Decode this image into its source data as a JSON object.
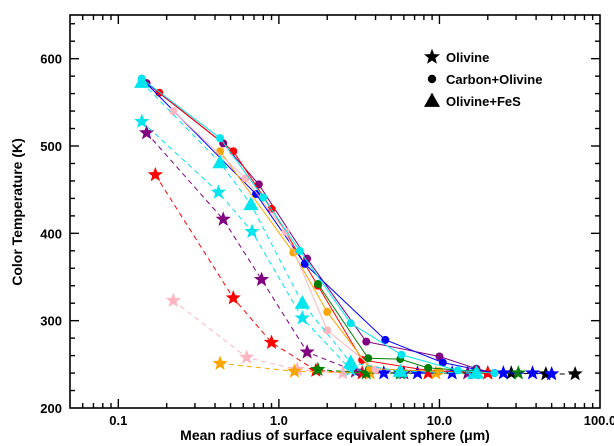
{
  "chart_data": {
    "type": "scatter",
    "xlabel": "Mean radius of surface equivalent sphere (",
    "xlabel_unit": "μm",
    "xlabel_close": ")",
    "ylabel": "Color Temperature (K)",
    "x_scale": "log",
    "xlim": [
      0.05,
      100
    ],
    "ylim": [
      200,
      650
    ],
    "x_ticks": [
      0.1,
      1.0,
      10.0,
      100.0
    ],
    "x_tick_labels": [
      "0.1",
      "1.0",
      "10.0",
      "100.0"
    ],
    "y_ticks": [
      200,
      300,
      400,
      500,
      600
    ],
    "y_tick_labels": [
      "200",
      "300",
      "400",
      "500",
      "600"
    ],
    "legend_position": "top-right",
    "legend": [
      {
        "marker": "star",
        "label": "Olivine"
      },
      {
        "marker": "circle",
        "label": "Carbon+Olivine"
      },
      {
        "marker": "triangle",
        "label": "Olivine+FeS"
      }
    ],
    "series": [
      {
        "color": "#000000",
        "marker": "star",
        "line": "dashed",
        "points": [
          [
            20,
            240
          ],
          [
            28,
            240
          ],
          [
            46,
            239
          ],
          [
            70,
            239
          ]
        ]
      },
      {
        "color": "#ff0000",
        "marker": "star",
        "line": "dashed",
        "points": [
          [
            0.17,
            467
          ],
          [
            0.52,
            326
          ],
          [
            0.9,
            275
          ],
          [
            1.7,
            243
          ],
          [
            3.3,
            240
          ],
          [
            8.5,
            240
          ],
          [
            20,
            240
          ]
        ]
      },
      {
        "color": "#800080",
        "marker": "star",
        "line": "dashed",
        "points": [
          [
            0.15,
            515
          ],
          [
            0.45,
            416
          ],
          [
            0.78,
            347
          ],
          [
            1.5,
            264
          ],
          [
            3.0,
            242
          ],
          [
            6.0,
            240
          ],
          [
            15,
            240
          ]
        ]
      },
      {
        "color": "#00e5ee",
        "marker": "star",
        "line": "dashed",
        "points": [
          [
            0.14,
            528
          ],
          [
            0.42,
            447
          ],
          [
            0.68,
            402
          ],
          [
            1.4,
            303
          ],
          [
            2.8,
            244
          ],
          [
            5.8,
            240
          ],
          [
            16,
            240
          ]
        ]
      },
      {
        "color": "#ffb6c1",
        "marker": "star",
        "line": "dashed",
        "points": [
          [
            0.22,
            323
          ],
          [
            0.63,
            258
          ],
          [
            1.3,
            244
          ],
          [
            2.5,
            240
          ]
        ]
      },
      {
        "color": "#ffa500",
        "marker": "star",
        "line": "dashed",
        "points": [
          [
            0.43,
            251
          ],
          [
            1.25,
            242
          ],
          [
            3.7,
            240
          ],
          [
            9.5,
            240
          ]
        ]
      },
      {
        "color": "#008000",
        "marker": "star",
        "line": "dashed",
        "points": [
          [
            1.75,
            244
          ],
          [
            3.5,
            240
          ],
          [
            5.7,
            240
          ],
          [
            31,
            240
          ]
        ]
      },
      {
        "color": "#0000ff",
        "marker": "star",
        "line": "dashed",
        "points": [
          [
            4.5,
            240
          ],
          [
            7.3,
            240
          ],
          [
            12,
            240
          ],
          [
            16.5,
            240
          ],
          [
            25,
            240
          ],
          [
            38,
            240
          ],
          [
            50,
            239
          ]
        ]
      },
      {
        "color": "#800080",
        "marker": "circle",
        "line": "solid",
        "points": [
          [
            0.15,
            572
          ],
          [
            0.45,
            503
          ],
          [
            0.75,
            456
          ],
          [
            1.5,
            371
          ],
          [
            3.5,
            276
          ],
          [
            10,
            259
          ],
          [
            17,
            245
          ],
          [
            22,
            240
          ]
        ]
      },
      {
        "color": "#ff0000",
        "marker": "circle",
        "line": "solid",
        "points": [
          [
            0.18,
            561
          ],
          [
            0.52,
            494
          ],
          [
            0.9,
            428
          ],
          [
            1.75,
            340
          ],
          [
            3.3,
            255
          ],
          [
            8.5,
            243
          ],
          [
            20,
            240
          ]
        ]
      },
      {
        "color": "#0000ff",
        "marker": "circle",
        "line": "solid",
        "points": [
          [
            0.14,
            577
          ],
          [
            0.72,
            445
          ],
          [
            1.45,
            365
          ],
          [
            4.6,
            278
          ],
          [
            10.5,
            252
          ],
          [
            22,
            240
          ]
        ]
      },
      {
        "color": "#ffa500",
        "marker": "circle",
        "line": "solid",
        "points": [
          [
            0.43,
            494
          ],
          [
            1.23,
            378
          ],
          [
            2.0,
            310
          ],
          [
            3.7,
            245
          ],
          [
            10,
            242
          ]
        ]
      },
      {
        "color": "#ffb6c1",
        "marker": "circle",
        "line": "solid",
        "points": [
          [
            0.22,
            540
          ],
          [
            0.62,
            463
          ],
          [
            1.1,
            402
          ],
          [
            2.0,
            289
          ],
          [
            4.0,
            244
          ]
        ]
      },
      {
        "color": "#008000",
        "marker": "circle",
        "line": "solid",
        "points": [
          [
            1.75,
            342
          ],
          [
            3.6,
            257
          ],
          [
            5.7,
            256
          ],
          [
            8.5,
            246
          ],
          [
            17,
            242
          ]
        ]
      },
      {
        "color": "#00e5ee",
        "marker": "circle",
        "line": "solid",
        "points": [
          [
            0.14,
            577
          ],
          [
            0.43,
            509
          ],
          [
            0.8,
            441
          ],
          [
            1.35,
            380
          ],
          [
            2.8,
            297
          ],
          [
            5.8,
            261
          ],
          [
            13,
            243
          ],
          [
            22,
            240
          ]
        ]
      },
      {
        "color": "#00e5ee",
        "marker": "triangle",
        "line": "dashed",
        "points": [
          [
            0.14,
            573
          ],
          [
            0.43,
            481
          ],
          [
            0.67,
            433
          ],
          [
            1.4,
            320
          ],
          [
            2.8,
            252
          ],
          [
            5.7,
            242
          ],
          [
            17,
            240
          ]
        ]
      }
    ]
  }
}
